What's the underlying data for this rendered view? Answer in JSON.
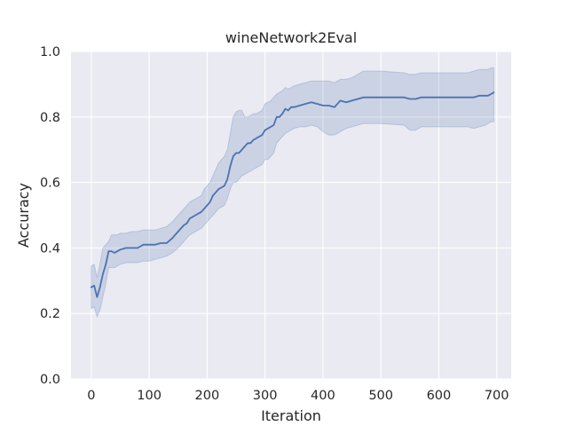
{
  "chart_data": {
    "type": "line",
    "title": "wineNetwork2Eval",
    "xlabel": "Iteration",
    "ylabel": "Accuracy",
    "xlim": [
      -35,
      725
    ],
    "ylim": [
      0.0,
      1.0
    ],
    "xticks": [
      0,
      100,
      200,
      300,
      400,
      500,
      600,
      700
    ],
    "yticks": [
      0.0,
      0.2,
      0.4,
      0.6,
      0.8,
      1.0
    ],
    "xtick_labels": [
      "0",
      "100",
      "200",
      "300",
      "400",
      "500",
      "600",
      "700"
    ],
    "ytick_labels": [
      "0.0",
      "0.2",
      "0.4",
      "0.6",
      "0.8",
      "1.0"
    ],
    "grid": true,
    "style": {
      "background": "#eaeaf2",
      "grid_color": "#ffffff",
      "line_color": "#4c72b0",
      "band_color": "#4c72b0",
      "band_opacity": 0.2
    },
    "series": [
      {
        "x": [
          0,
          5,
          10,
          15,
          20,
          25,
          30,
          35,
          40,
          45,
          50,
          60,
          70,
          80,
          90,
          100,
          110,
          120,
          130,
          140,
          150,
          160,
          165,
          170,
          180,
          190,
          195,
          200,
          205,
          210,
          215,
          220,
          230,
          235,
          240,
          245,
          250,
          255,
          260,
          265,
          270,
          275,
          280,
          285,
          290,
          295,
          300,
          305,
          310,
          315,
          320,
          325,
          330,
          335,
          340,
          345,
          350,
          360,
          370,
          380,
          390,
          400,
          410,
          420,
          430,
          440,
          450,
          460,
          470,
          480,
          500,
          540,
          550,
          560,
          570,
          580,
          600,
          650,
          660,
          670,
          680,
          685,
          690,
          695
        ],
        "y": [
          0.28,
          0.285,
          0.25,
          0.28,
          0.32,
          0.35,
          0.39,
          0.39,
          0.385,
          0.39,
          0.395,
          0.4,
          0.4,
          0.4,
          0.41,
          0.41,
          0.41,
          0.415,
          0.415,
          0.43,
          0.45,
          0.47,
          0.475,
          0.49,
          0.5,
          0.51,
          0.52,
          0.53,
          0.54,
          0.56,
          0.57,
          0.58,
          0.59,
          0.61,
          0.65,
          0.68,
          0.69,
          0.69,
          0.7,
          0.71,
          0.72,
          0.72,
          0.73,
          0.735,
          0.74,
          0.745,
          0.76,
          0.765,
          0.77,
          0.775,
          0.8,
          0.8,
          0.81,
          0.825,
          0.82,
          0.83,
          0.83,
          0.835,
          0.84,
          0.845,
          0.84,
          0.835,
          0.835,
          0.83,
          0.85,
          0.845,
          0.85,
          0.855,
          0.86,
          0.86,
          0.86,
          0.86,
          0.855,
          0.855,
          0.86,
          0.86,
          0.86,
          0.86,
          0.86,
          0.865,
          0.865,
          0.865,
          0.87,
          0.875
        ],
        "lower": [
          0.215,
          0.22,
          0.19,
          0.21,
          0.25,
          0.29,
          0.34,
          0.34,
          0.34,
          0.345,
          0.35,
          0.355,
          0.355,
          0.355,
          0.36,
          0.36,
          0.365,
          0.37,
          0.375,
          0.385,
          0.4,
          0.42,
          0.43,
          0.44,
          0.45,
          0.46,
          0.47,
          0.48,
          0.49,
          0.5,
          0.51,
          0.52,
          0.53,
          0.55,
          0.58,
          0.6,
          0.6,
          0.61,
          0.62,
          0.625,
          0.63,
          0.635,
          0.64,
          0.645,
          0.65,
          0.655,
          0.67,
          0.67,
          0.68,
          0.69,
          0.72,
          0.73,
          0.74,
          0.75,
          0.755,
          0.76,
          0.765,
          0.77,
          0.77,
          0.775,
          0.77,
          0.755,
          0.745,
          0.745,
          0.755,
          0.765,
          0.77,
          0.775,
          0.78,
          0.78,
          0.78,
          0.775,
          0.76,
          0.76,
          0.77,
          0.77,
          0.77,
          0.77,
          0.765,
          0.77,
          0.775,
          0.78,
          0.785,
          0.785
        ],
        "upper": [
          0.345,
          0.35,
          0.31,
          0.35,
          0.4,
          0.41,
          0.42,
          0.44,
          0.44,
          0.44,
          0.445,
          0.445,
          0.45,
          0.45,
          0.455,
          0.455,
          0.455,
          0.46,
          0.465,
          0.48,
          0.5,
          0.52,
          0.53,
          0.54,
          0.55,
          0.56,
          0.58,
          0.59,
          0.6,
          0.62,
          0.64,
          0.66,
          0.68,
          0.7,
          0.75,
          0.8,
          0.815,
          0.82,
          0.82,
          0.8,
          0.8,
          0.805,
          0.81,
          0.81,
          0.815,
          0.82,
          0.84,
          0.845,
          0.85,
          0.86,
          0.87,
          0.875,
          0.88,
          0.89,
          0.885,
          0.89,
          0.895,
          0.9,
          0.905,
          0.91,
          0.91,
          0.91,
          0.91,
          0.905,
          0.915,
          0.915,
          0.92,
          0.93,
          0.94,
          0.94,
          0.94,
          0.935,
          0.93,
          0.93,
          0.935,
          0.935,
          0.935,
          0.935,
          0.94,
          0.945,
          0.945,
          0.945,
          0.95,
          0.95
        ]
      }
    ]
  }
}
